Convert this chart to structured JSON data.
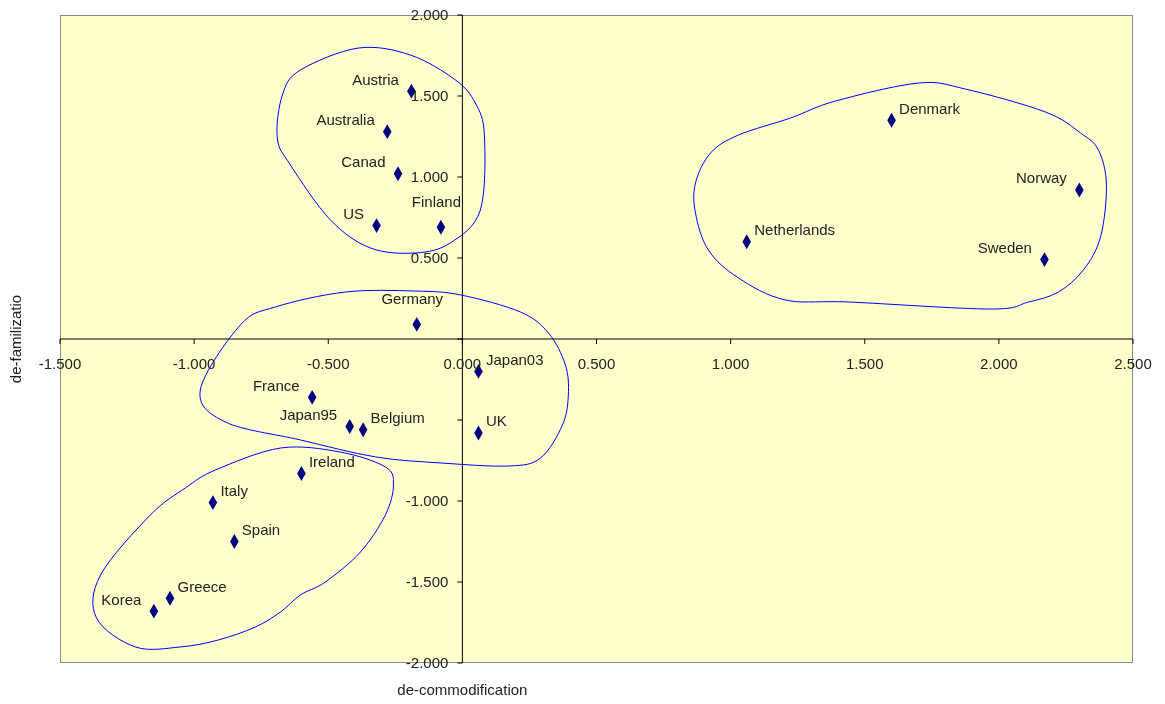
{
  "chart_data": {
    "type": "scatter",
    "xlabel": "de-commodification",
    "ylabel": "de-familizatio",
    "marker": "diamond",
    "grid": false,
    "legend": false,
    "xlim": [
      -1.5,
      2.5
    ],
    "xticks": [
      {
        "value": -1.5,
        "label": "-1.500"
      },
      {
        "value": -1,
        "label": "-1.000"
      },
      {
        "value": -0.5,
        "label": "-0.500"
      },
      {
        "value": 0,
        "label": "0.000"
      },
      {
        "value": 0.5,
        "label": "0.500"
      },
      {
        "value": 1,
        "label": "1.000"
      },
      {
        "value": 1.5,
        "label": "1.500"
      },
      {
        "value": 2,
        "label": "2.000"
      },
      {
        "value": 2.5,
        "label": "2.500"
      }
    ],
    "ylim": [
      -2,
      2
    ],
    "yticks": [
      {
        "value": -2,
        "label": "-2.000"
      },
      {
        "value": -1.5,
        "label": "-1.500"
      },
      {
        "value": -1,
        "label": "-1.000"
      },
      {
        "value": -0.5,
        "label": null
      },
      {
        "value": 0,
        "label": null
      },
      {
        "value": 0.5,
        "label": "0.500"
      },
      {
        "value": 1,
        "label": "1.000"
      },
      {
        "value": 1.5,
        "label": "1.500"
      },
      {
        "value": 2,
        "label": "2.000"
      }
    ],
    "series": [
      {
        "name": "Austria",
        "color": "#000080",
        "x": [
          -0.19
        ],
        "values": [
          1.53
        ]
      },
      {
        "name": "Australia",
        "color": "#000080",
        "x": [
          -0.28
        ],
        "values": [
          1.28
        ]
      },
      {
        "name": "Canad",
        "color": "#000080",
        "x": [
          -0.24
        ],
        "values": [
          1.02
        ]
      },
      {
        "name": "US",
        "color": "#000080",
        "x": [
          -0.32
        ],
        "values": [
          0.7
        ]
      },
      {
        "name": "Finland",
        "color": "#000080",
        "x": [
          -0.08
        ],
        "values": [
          0.69
        ]
      },
      {
        "name": "Germany",
        "color": "#000080",
        "x": [
          -0.17
        ],
        "values": [
          0.09
        ]
      },
      {
        "name": "Japan03",
        "color": "#000080",
        "x": [
          0.06
        ],
        "values": [
          -0.2
        ]
      },
      {
        "name": "France",
        "color": "#000080",
        "x": [
          -0.56
        ],
        "values": [
          -0.36
        ]
      },
      {
        "name": "Japan95",
        "color": "#000080",
        "x": [
          -0.42
        ],
        "values": [
          -0.54
        ]
      },
      {
        "name": "Belgium",
        "color": "#000080",
        "x": [
          -0.37
        ],
        "values": [
          -0.56
        ]
      },
      {
        "name": "UK",
        "color": "#000080",
        "x": [
          0.06
        ],
        "values": [
          -0.58
        ]
      },
      {
        "name": "Ireland",
        "color": "#000080",
        "x": [
          -0.6
        ],
        "values": [
          -0.83
        ]
      },
      {
        "name": "Italy",
        "color": "#000080",
        "x": [
          -0.93
        ],
        "values": [
          -1.01
        ]
      },
      {
        "name": "Spain",
        "color": "#000080",
        "x": [
          -0.85
        ],
        "values": [
          -1.25
        ]
      },
      {
        "name": "Greece",
        "color": "#000080",
        "x": [
          -1.09
        ],
        "values": [
          -1.6
        ]
      },
      {
        "name": "Korea",
        "color": "#000080",
        "x": [
          -1.15
        ],
        "values": [
          -1.68
        ]
      },
      {
        "name": "Denmark",
        "color": "#000080",
        "x": [
          1.6
        ],
        "values": [
          1.35
        ]
      },
      {
        "name": "Norway",
        "color": "#000080",
        "x": [
          2.3
        ],
        "values": [
          0.92
        ]
      },
      {
        "name": "Netherlands",
        "color": "#000080",
        "x": [
          1.06
        ],
        "values": [
          0.6
        ]
      },
      {
        "name": "Sweden",
        "color": "#000080",
        "x": [
          2.17
        ],
        "values": [
          0.49
        ]
      }
    ]
  }
}
